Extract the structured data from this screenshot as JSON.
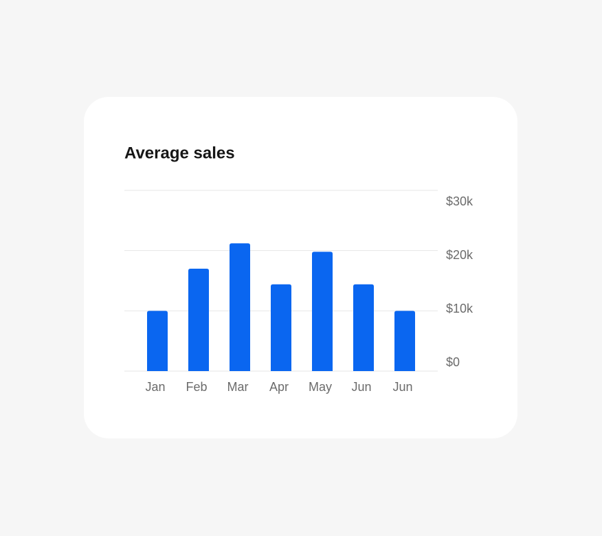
{
  "chart_data": {
    "type": "bar",
    "title": "Average sales",
    "categories": [
      "Jan",
      "Feb",
      "Mar",
      "Apr",
      "May",
      "Jun",
      "Jun"
    ],
    "values": [
      10000,
      17000,
      21200,
      14400,
      19800,
      14400,
      10000
    ],
    "color": "#0a66f0",
    "ylim": [
      0,
      30000
    ],
    "yticks": [
      {
        "value": 0,
        "label": "$0"
      },
      {
        "value": 10000,
        "label": "$10k"
      },
      {
        "value": 20000,
        "label": "$20k"
      },
      {
        "value": 30000,
        "label": "$30k"
      }
    ],
    "grid": true
  }
}
